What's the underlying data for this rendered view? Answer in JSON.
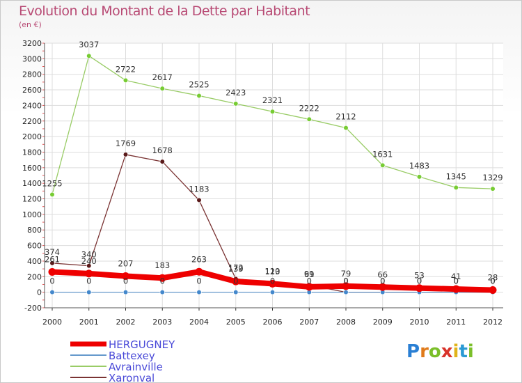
{
  "chart_data": {
    "type": "line",
    "title": "Evolution du Montant de la Dette par Habitant",
    "subtitle": "(en €)",
    "xlabel": "",
    "ylabel": "",
    "ylim": [
      -200,
      3200
    ],
    "yticks": [
      -200,
      0,
      200,
      400,
      600,
      800,
      1000,
      1200,
      1400,
      1600,
      1800,
      2000,
      2200,
      2400,
      2600,
      2800,
      3000,
      3200
    ],
    "categories": [
      "2000",
      "2001",
      "2002",
      "2003",
      "2004",
      "2005",
      "2006",
      "2007",
      "2008",
      "2009",
      "2010",
      "2011",
      "2012"
    ],
    "grid": true,
    "legend_position": "bottom-left",
    "series": [
      {
        "name": "Avrainville",
        "color": "#99cc66",
        "marker": "#77cc33",
        "values": [
          1255,
          3037,
          2722,
          2617,
          2525,
          2423,
          2321,
          2222,
          2112,
          1631,
          1483,
          1345,
          1329
        ]
      },
      {
        "name": "Xaronval",
        "color": "#7a3333",
        "marker": "#5a1a1a",
        "values": [
          374,
          340,
          1769,
          1678,
          1183,
          172,
          123,
          91,
          0,
          0,
          0,
          0,
          0
        ],
        "labels": [
          "374",
          "340",
          "1769",
          "1678",
          "1183",
          "172",
          "123",
          "91",
          "0",
          "0",
          "0",
          "0",
          "0"
        ]
      },
      {
        "name": "Battexey",
        "color": "#6699cc",
        "marker": "#4488cc",
        "values": [
          0,
          0,
          0,
          0,
          0,
          0,
          0,
          0,
          0,
          0,
          0,
          0,
          0
        ],
        "labels": [
          "0",
          "0",
          "0",
          "0",
          "0",
          "0",
          "0",
          "0",
          "0",
          "0",
          "0",
          "0",
          "0"
        ]
      },
      {
        "name": "HERGUGNEY",
        "color": "#ee0000",
        "marker": "#ee0000",
        "values": [
          261,
          240,
          207,
          183,
          263,
          139,
          110,
          69,
          79,
          66,
          53,
          41,
          28
        ],
        "labels": [
          "261",
          "240",
          "207",
          "183",
          "263",
          "139",
          "110",
          "69",
          "79",
          "66",
          "53",
          "41",
          "28"
        ]
      }
    ],
    "legend": [
      {
        "name": "HERGUGNEY",
        "color": "#ee0000",
        "thick": true
      },
      {
        "name": "Battexey",
        "color": "#6699cc",
        "thick": false
      },
      {
        "name": "Avrainville",
        "color": "#99cc66",
        "thick": false
      },
      {
        "name": "Xaronval",
        "color": "#7a3333",
        "thick": false
      }
    ]
  },
  "brand": {
    "logo_text": "Proxiti"
  }
}
